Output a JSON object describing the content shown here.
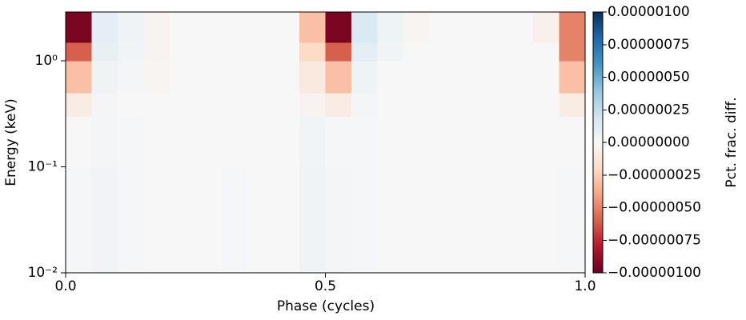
{
  "chart_data": {
    "type": "heatmap",
    "xlabel": "Phase (cycles)",
    "ylabel": "Energy (keV)",
    "colorbar_label": "Pct. frac. diff.",
    "x_edges": [
      0,
      0.05,
      0.1,
      0.15,
      0.2,
      0.25,
      0.3,
      0.35,
      0.4,
      0.45,
      0.5,
      0.55,
      0.6,
      0.65,
      0.7,
      0.75,
      0.8,
      0.85,
      0.9,
      0.95,
      1
    ],
    "y_edges": [
      0.01,
      0.03,
      0.1,
      0.3,
      0.5,
      1,
      1.5,
      2.9
    ],
    "z": [
      [
        1e-08,
        3e-08,
        1e-08,
        0,
        0,
        0,
        1e-08,
        0,
        0,
        4e-08,
        2e-08,
        1e-08,
        0,
        0,
        0,
        0,
        0,
        0,
        0,
        1e-08
      ],
      [
        1e-08,
        3e-08,
        1e-08,
        0,
        0,
        0,
        1e-08,
        0,
        0,
        4e-08,
        2e-08,
        1e-08,
        0,
        0,
        0,
        0,
        0,
        0,
        0,
        1e-08
      ],
      [
        0,
        2e-08,
        1e-08,
        0,
        0,
        0,
        0,
        0,
        0,
        3e-08,
        1e-08,
        1e-08,
        0,
        0,
        0,
        0,
        0,
        0,
        0,
        0
      ],
      [
        -8e-08,
        2e-08,
        0,
        0,
        0,
        0,
        0,
        0,
        0,
        -3e-08,
        -8e-08,
        2e-08,
        0,
        0,
        0,
        0,
        0,
        0,
        0,
        -8e-08
      ],
      [
        -3e-07,
        4e-08,
        2e-08,
        -2e-08,
        0,
        0,
        0,
        0,
        0,
        -1e-07,
        -3e-07,
        5e-08,
        0,
        0,
        0,
        0,
        0,
        0,
        0,
        -3e-07
      ],
      [
        -6e-07,
        8e-08,
        3e-08,
        -3e-08,
        0,
        0,
        0,
        0,
        0,
        -2e-07,
        -6e-07,
        1e-07,
        3e-08,
        0,
        0,
        0,
        0,
        0,
        0,
        -5e-07
      ],
      [
        -9.5e-07,
        1e-07,
        4e-08,
        -3e-08,
        0,
        0,
        0,
        0,
        0,
        -3e-07,
        -9.5e-07,
        1.5e-07,
        5e-08,
        -2e-08,
        0,
        0,
        0,
        0,
        -5e-08,
        -5e-07
      ]
    ],
    "xlim": [
      0,
      1
    ],
    "ylim": [
      0.01,
      2.9
    ],
    "ylog": true,
    "zlim": [
      -1e-06,
      1e-06
    ],
    "colormap": [
      "#67001f",
      "#b2182b",
      "#d6604d",
      "#f4a582",
      "#fddbc7",
      "#f7f7f7",
      "#d1e5f0",
      "#92c5de",
      "#4393c3",
      "#2166ac",
      "#053061"
    ],
    "xticks": [
      {
        "value": 0,
        "label": "0.0"
      },
      {
        "value": 0.5,
        "label": "0.5"
      },
      {
        "value": 1,
        "label": "1.0"
      }
    ],
    "yticks": [
      {
        "value": 0.01,
        "label": "10⁻²"
      },
      {
        "value": 0.1,
        "label": "10⁻¹"
      },
      {
        "value": 1,
        "label": "10⁰"
      }
    ],
    "zticks": [
      {
        "value": -1e-06,
        "label": "−0.00000100"
      },
      {
        "value": -7.5e-07,
        "label": "−0.00000075"
      },
      {
        "value": -5e-07,
        "label": "−0.00000050"
      },
      {
        "value": -2.5e-07,
        "label": "−0.00000025"
      },
      {
        "value": 0,
        "label": "0.00000000"
      },
      {
        "value": 2.5e-07,
        "label": "0.00000025"
      },
      {
        "value": 5e-07,
        "label": "0.00000050"
      },
      {
        "value": 7.5e-07,
        "label": "0.00000075"
      },
      {
        "value": 1e-06,
        "label": "0.00000100"
      }
    ]
  }
}
